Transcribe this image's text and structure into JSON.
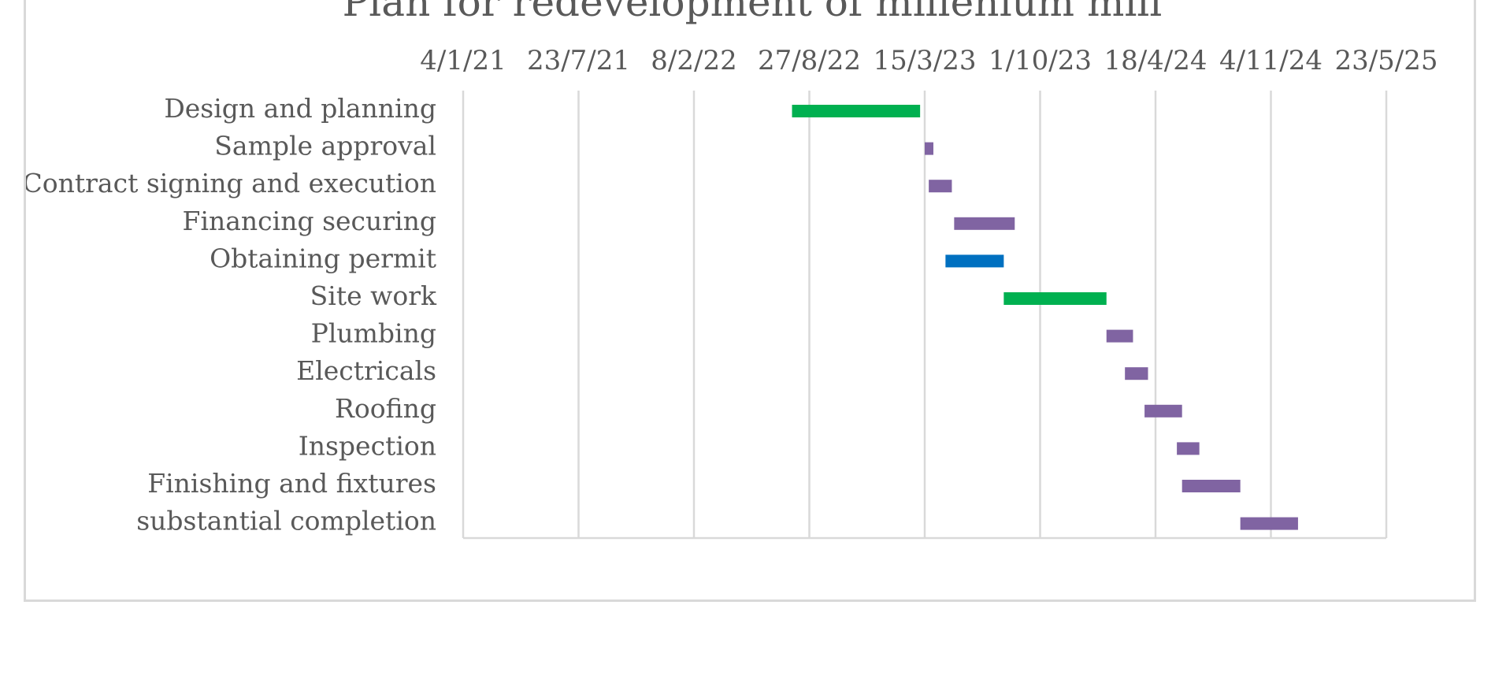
{
  "chart_data": {
    "type": "bar",
    "subtype": "gantt",
    "title": "Plan for redevelopment of millenium mill",
    "xlabel": "",
    "ylabel": "",
    "x_axis_position": "top",
    "x_scale": "date",
    "xlim": [
      "2021-01-04",
      "2025-05-23"
    ],
    "x_ticks": [
      "2021-01-04",
      "2021-07-23",
      "2022-02-08",
      "2022-08-27",
      "2023-03-15",
      "2023-10-01",
      "2024-04-18",
      "2024-11-04",
      "2025-05-23"
    ],
    "x_tick_labels": [
      "4/1/21",
      "23/7/21",
      "8/2/22",
      "27/8/22",
      "15/3/23",
      "1/10/23",
      "18/4/24",
      "4/11/24",
      "23/5/25"
    ],
    "grid": "vertical",
    "legend": "none",
    "colors": {
      "green": "#00b050",
      "purple": "#8064a2",
      "blue": "#0070c0",
      "grid": "#d9d9d9",
      "text": "#595959"
    },
    "tasks": [
      {
        "name": "Design and planning",
        "start": "2022-07-28",
        "end": "2023-03-07",
        "color": "green"
      },
      {
        "name": "Sample approval",
        "start": "2023-03-15",
        "end": "2023-03-30",
        "color": "purple"
      },
      {
        "name": "Contract signing and execution",
        "start": "2023-03-22",
        "end": "2023-05-01",
        "color": "purple"
      },
      {
        "name": "Financing securing",
        "start": "2023-05-05",
        "end": "2023-08-18",
        "color": "purple"
      },
      {
        "name": "Obtaining permit",
        "start": "2023-04-20",
        "end": "2023-07-30",
        "color": "blue"
      },
      {
        "name": "Site work",
        "start": "2023-07-30",
        "end": "2024-01-24",
        "color": "green"
      },
      {
        "name": "Plumbing",
        "start": "2024-01-24",
        "end": "2024-03-10",
        "color": "purple"
      },
      {
        "name": "Electricals",
        "start": "2024-02-25",
        "end": "2024-04-05",
        "color": "purple"
      },
      {
        "name": "Roofing",
        "start": "2024-03-30",
        "end": "2024-06-03",
        "color": "purple"
      },
      {
        "name": "Inspection",
        "start": "2024-05-25",
        "end": "2024-07-03",
        "color": "purple"
      },
      {
        "name": "Finishing and fixtures",
        "start": "2024-06-03",
        "end": "2024-09-12",
        "color": "purple"
      },
      {
        "name": "substantial completion",
        "start": "2024-09-12",
        "end": "2024-12-21",
        "color": "purple"
      }
    ]
  }
}
